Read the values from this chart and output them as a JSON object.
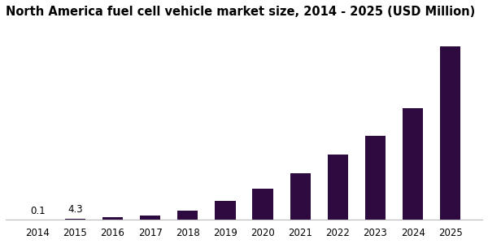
{
  "title": "North America fuel cell vehicle market size, 2014 - 2025 (USD Million)",
  "years": [
    2014,
    2015,
    2016,
    2017,
    2018,
    2019,
    2020,
    2021,
    2022,
    2023,
    2024,
    2025
  ],
  "values": [
    0.1,
    4.3,
    8,
    14,
    30,
    60,
    100,
    150,
    210,
    270,
    360,
    560
  ],
  "ylim_max": 630,
  "bar_color": "#2D0A3F",
  "annotation_2014": "0.1",
  "annotation_2015": "4.3",
  "background_color": "#ffffff",
  "title_fontsize": 10.5,
  "tick_fontsize": 8.5,
  "annotation_fontsize": 8.5,
  "bar_width": 0.55
}
